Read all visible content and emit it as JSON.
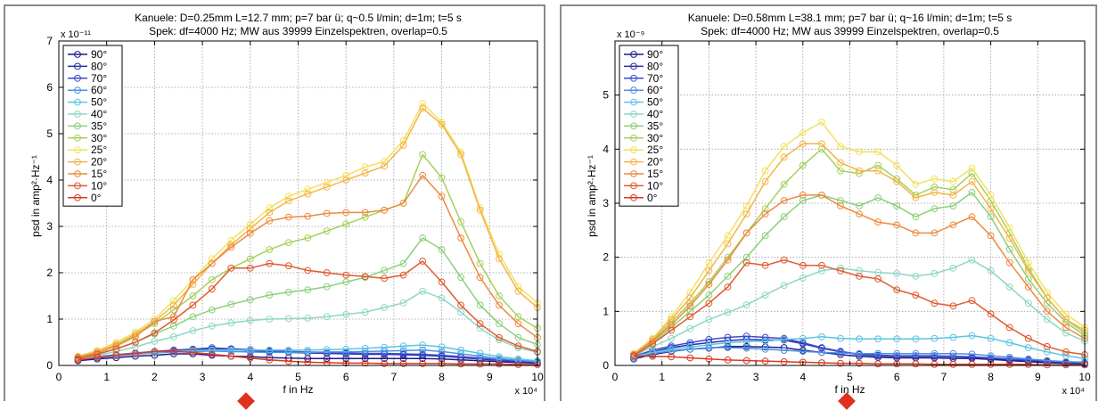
{
  "chart_data": [
    {
      "type": "line",
      "title": "Kanuele: D=0.25mm L=12.7 mm; p=7 bar ü; q~0.5 l/min; d=1m; t=5 s",
      "subtitle": "Spek: df=4000 Hz; MW aus 39999 Einzelspektren, overlap=0.5",
      "xlabel": "f in Hz",
      "ylabel": "psd in amp²·Hz⁻¹",
      "x_exponent_label": "x 10⁴",
      "y_exponent_label": "x 10⁻¹¹",
      "xlim": [
        0,
        10
      ],
      "ylim": [
        0,
        7
      ],
      "xticks": [
        "0",
        "1",
        "2",
        "3",
        "4",
        "5",
        "6",
        "7",
        "8",
        "9",
        "10"
      ],
      "yticks": [
        "0",
        "1",
        "2",
        "3",
        "4",
        "5",
        "6",
        "7"
      ],
      "grid": true,
      "legend_position": "top-left",
      "x": [
        0.4,
        0.8,
        1.2,
        1.6,
        2.0,
        2.4,
        2.8,
        3.2,
        3.6,
        4.0,
        4.4,
        4.8,
        5.2,
        5.6,
        6.0,
        6.4,
        6.8,
        7.2,
        7.6,
        8.0,
        8.4,
        8.8,
        9.2,
        9.6,
        10.0
      ],
      "series": [
        {
          "name": "90°",
          "color": "#1d1a8c",
          "values": [
            0.1,
            0.14,
            0.17,
            0.2,
            0.22,
            0.25,
            0.25,
            0.22,
            0.2,
            0.19,
            0.17,
            0.16,
            0.15,
            0.15,
            0.15,
            0.15,
            0.15,
            0.15,
            0.15,
            0.14,
            0.12,
            0.1,
            0.08,
            0.06,
            0.05
          ]
        },
        {
          "name": "80°",
          "color": "#2a2ea6",
          "values": [
            0.12,
            0.17,
            0.21,
            0.25,
            0.28,
            0.31,
            0.33,
            0.35,
            0.34,
            0.32,
            0.3,
            0.28,
            0.27,
            0.26,
            0.25,
            0.24,
            0.24,
            0.23,
            0.22,
            0.2,
            0.17,
            0.14,
            0.11,
            0.08,
            0.06
          ]
        },
        {
          "name": "70°",
          "color": "#3b4bd0",
          "values": [
            0.14,
            0.19,
            0.23,
            0.27,
            0.3,
            0.33,
            0.35,
            0.38,
            0.36,
            0.34,
            0.32,
            0.3,
            0.29,
            0.28,
            0.27,
            0.26,
            0.26,
            0.25,
            0.24,
            0.22,
            0.19,
            0.16,
            0.12,
            0.09,
            0.07
          ]
        },
        {
          "name": "60°",
          "color": "#4f8fe0",
          "values": [
            0.13,
            0.17,
            0.21,
            0.24,
            0.27,
            0.29,
            0.3,
            0.31,
            0.3,
            0.29,
            0.28,
            0.28,
            0.28,
            0.29,
            0.29,
            0.3,
            0.31,
            0.32,
            0.33,
            0.3,
            0.25,
            0.2,
            0.15,
            0.11,
            0.08
          ]
        },
        {
          "name": "50°",
          "color": "#5cc4e4",
          "values": [
            0.14,
            0.18,
            0.22,
            0.25,
            0.28,
            0.3,
            0.32,
            0.33,
            0.33,
            0.33,
            0.33,
            0.33,
            0.33,
            0.34,
            0.35,
            0.37,
            0.39,
            0.42,
            0.44,
            0.4,
            0.33,
            0.26,
            0.19,
            0.14,
            0.1
          ]
        },
        {
          "name": "40°",
          "color": "#8fd6c6",
          "values": [
            0.15,
            0.22,
            0.3,
            0.4,
            0.52,
            0.62,
            0.75,
            0.85,
            0.92,
            0.97,
            1.0,
            1.01,
            1.02,
            1.05,
            1.1,
            1.15,
            1.25,
            1.35,
            1.6,
            1.45,
            1.15,
            0.8,
            0.55,
            0.38,
            0.28
          ]
        },
        {
          "name": "35°",
          "color": "#8ccf7a",
          "values": [
            0.16,
            0.25,
            0.35,
            0.5,
            0.68,
            0.85,
            1.05,
            1.2,
            1.32,
            1.42,
            1.52,
            1.58,
            1.63,
            1.7,
            1.8,
            1.9,
            2.05,
            2.2,
            2.75,
            2.5,
            1.9,
            1.3,
            0.9,
            0.6,
            0.45
          ]
        },
        {
          "name": "30°",
          "color": "#a6d05a",
          "values": [
            0.18,
            0.3,
            0.45,
            0.65,
            0.9,
            1.2,
            1.5,
            1.85,
            2.1,
            2.3,
            2.5,
            2.65,
            2.75,
            2.9,
            3.05,
            3.2,
            3.35,
            3.5,
            4.55,
            4.05,
            3.1,
            2.2,
            1.5,
            1.05,
            0.8
          ]
        },
        {
          "name": "25°",
          "color": "#f2e060",
          "values": [
            0.2,
            0.32,
            0.5,
            0.72,
            1.0,
            1.4,
            1.85,
            2.3,
            2.7,
            3.05,
            3.4,
            3.65,
            3.8,
            3.95,
            4.1,
            4.28,
            4.4,
            4.85,
            5.65,
            5.25,
            4.6,
            3.4,
            2.4,
            1.7,
            1.35
          ]
        },
        {
          "name": "20°",
          "color": "#f3b448",
          "values": [
            0.19,
            0.3,
            0.46,
            0.68,
            0.95,
            1.3,
            1.75,
            2.2,
            2.6,
            2.95,
            3.3,
            3.55,
            3.7,
            3.85,
            4.0,
            4.15,
            4.3,
            4.75,
            5.55,
            5.2,
            4.55,
            3.35,
            2.3,
            1.6,
            1.25
          ]
        },
        {
          "name": "15°",
          "color": "#ee8a3e",
          "values": [
            0.17,
            0.27,
            0.42,
            0.62,
            0.95,
            1.05,
            1.85,
            2.2,
            2.55,
            2.85,
            3.12,
            3.2,
            3.22,
            3.28,
            3.3,
            3.3,
            3.35,
            3.5,
            4.1,
            3.65,
            2.75,
            1.9,
            1.3,
            0.9,
            0.6
          ]
        },
        {
          "name": "10°",
          "color": "#e05a2e",
          "values": [
            0.15,
            0.24,
            0.36,
            0.5,
            0.7,
            0.98,
            1.3,
            1.65,
            2.1,
            2.1,
            2.2,
            2.15,
            2.05,
            2.0,
            1.95,
            1.92,
            1.88,
            1.95,
            2.25,
            1.8,
            1.3,
            0.9,
            0.6,
            0.42,
            0.3
          ]
        },
        {
          "name": "0°",
          "color": "#d83a20",
          "values": [
            0.12,
            0.17,
            0.22,
            0.26,
            0.3,
            0.3,
            0.28,
            0.24,
            0.2,
            0.16,
            0.12,
            0.09,
            0.07,
            0.06,
            0.05,
            0.05,
            0.04,
            0.04,
            0.04,
            0.04,
            0.03,
            0.03,
            0.03,
            0.02,
            0.02
          ]
        }
      ]
    },
    {
      "type": "line",
      "title": "Kanuele: D=0.58mm L=38.1 mm; p=7 bar ü; q~16 l/min; d=1m; t=5 s",
      "subtitle": "Spek: df=4000 Hz; MW aus 39999 Einzelspektren, overlap=0.5",
      "xlabel": "f in Hz",
      "ylabel": "psd in amp²·Hz⁻¹",
      "x_exponent_label": "x 10⁴",
      "y_exponent_label": "x 10⁻⁹",
      "xlim": [
        0,
        10
      ],
      "ylim": [
        0,
        6
      ],
      "xticks": [
        "0",
        "1",
        "2",
        "3",
        "4",
        "5",
        "6",
        "7",
        "8",
        "9",
        "10"
      ],
      "yticks": [
        "0",
        "1",
        "2",
        "3",
        "4",
        "5"
      ],
      "grid": true,
      "legend_position": "top-left",
      "x": [
        0.4,
        0.8,
        1.2,
        1.6,
        2.0,
        2.4,
        2.8,
        3.2,
        3.6,
        4.0,
        4.4,
        4.8,
        5.2,
        5.6,
        6.0,
        6.4,
        6.8,
        7.2,
        7.6,
        8.0,
        8.4,
        8.8,
        9.2,
        9.6,
        10.0
      ],
      "series": [
        {
          "name": "90°",
          "color": "#1d1a8c",
          "values": [
            0.12,
            0.2,
            0.26,
            0.3,
            0.32,
            0.35,
            0.35,
            0.34,
            0.33,
            0.28,
            0.24,
            0.2,
            0.17,
            0.15,
            0.14,
            0.14,
            0.14,
            0.13,
            0.13,
            0.11,
            0.09,
            0.07,
            0.05,
            0.04,
            0.03
          ]
        },
        {
          "name": "80°",
          "color": "#2a2ea6",
          "values": [
            0.15,
            0.25,
            0.33,
            0.38,
            0.42,
            0.46,
            0.48,
            0.47,
            0.47,
            0.4,
            0.32,
            0.25,
            0.2,
            0.18,
            0.17,
            0.17,
            0.17,
            0.16,
            0.15,
            0.13,
            0.11,
            0.09,
            0.07,
            0.05,
            0.04
          ]
        },
        {
          "name": "70°",
          "color": "#3b4bd0",
          "values": [
            0.17,
            0.28,
            0.36,
            0.42,
            0.48,
            0.52,
            0.54,
            0.52,
            0.5,
            0.42,
            0.33,
            0.26,
            0.21,
            0.19,
            0.18,
            0.18,
            0.18,
            0.17,
            0.16,
            0.14,
            0.12,
            0.1,
            0.08,
            0.06,
            0.05
          ]
        },
        {
          "name": "60°",
          "color": "#4f8fe0",
          "values": [
            0.15,
            0.22,
            0.27,
            0.3,
            0.33,
            0.33,
            0.32,
            0.3,
            0.28,
            0.26,
            0.24,
            0.23,
            0.22,
            0.22,
            0.22,
            0.22,
            0.22,
            0.22,
            0.21,
            0.18,
            0.15,
            0.12,
            0.09,
            0.07,
            0.06
          ]
        },
        {
          "name": "50°",
          "color": "#5cc4e4",
          "values": [
            0.17,
            0.24,
            0.3,
            0.34,
            0.38,
            0.42,
            0.44,
            0.45,
            0.48,
            0.5,
            0.53,
            0.5,
            0.49,
            0.49,
            0.49,
            0.49,
            0.5,
            0.52,
            0.55,
            0.5,
            0.42,
            0.33,
            0.25,
            0.18,
            0.13
          ]
        },
        {
          "name": "40°",
          "color": "#8fd6c6",
          "values": [
            0.18,
            0.35,
            0.5,
            0.68,
            0.85,
            0.98,
            1.12,
            1.3,
            1.48,
            1.62,
            1.75,
            1.8,
            1.75,
            1.72,
            1.7,
            1.65,
            1.7,
            1.8,
            1.95,
            1.75,
            1.45,
            1.15,
            0.85,
            0.6,
            0.45
          ]
        },
        {
          "name": "35°",
          "color": "#8ccf7a",
          "values": [
            0.2,
            0.42,
            0.7,
            1.0,
            1.3,
            1.65,
            2.0,
            2.4,
            2.75,
            3.05,
            3.15,
            3.05,
            2.95,
            3.1,
            2.95,
            2.75,
            2.9,
            2.95,
            3.2,
            2.75,
            2.15,
            1.6,
            1.15,
            0.8,
            0.55
          ]
        },
        {
          "name": "30°",
          "color": "#a6d05a",
          "values": [
            0.2,
            0.45,
            0.8,
            1.15,
            1.55,
            2.0,
            2.45,
            2.9,
            3.35,
            3.7,
            4.0,
            3.6,
            3.55,
            3.7,
            3.45,
            3.15,
            3.3,
            3.25,
            3.55,
            3.05,
            2.45,
            1.8,
            1.25,
            0.85,
            0.6
          ]
        },
        {
          "name": "25°",
          "color": "#f2e060",
          "values": [
            0.22,
            0.5,
            0.9,
            1.35,
            1.9,
            2.4,
            2.95,
            3.6,
            4.05,
            4.3,
            4.5,
            4.05,
            3.95,
            3.95,
            3.7,
            3.35,
            3.45,
            3.4,
            3.65,
            3.15,
            2.55,
            1.9,
            1.35,
            0.95,
            0.7
          ]
        },
        {
          "name": "20°",
          "color": "#f3b448",
          "values": [
            0.21,
            0.48,
            0.85,
            1.25,
            1.75,
            2.25,
            2.8,
            3.4,
            3.85,
            4.1,
            4.1,
            3.75,
            3.6,
            3.6,
            3.4,
            3.1,
            3.2,
            3.15,
            3.4,
            2.9,
            2.35,
            1.75,
            1.25,
            0.85,
            0.65
          ]
        },
        {
          "name": "15°",
          "color": "#ee8a3e",
          "values": [
            0.2,
            0.45,
            0.75,
            1.1,
            1.5,
            1.95,
            2.45,
            2.8,
            3.05,
            3.15,
            3.15,
            2.95,
            2.8,
            2.65,
            2.6,
            2.45,
            2.45,
            2.6,
            2.75,
            2.4,
            1.9,
            1.45,
            1.0,
            0.7,
            0.5
          ]
        },
        {
          "name": "10°",
          "color": "#e05a2e",
          "values": [
            0.18,
            0.4,
            0.65,
            0.9,
            1.15,
            1.45,
            1.9,
            1.85,
            1.95,
            1.85,
            1.85,
            1.75,
            1.65,
            1.6,
            1.4,
            1.3,
            1.15,
            1.1,
            1.2,
            0.95,
            0.7,
            0.5,
            0.35,
            0.25,
            0.2
          ]
        },
        {
          "name": "0°",
          "color": "#d83a20",
          "values": [
            0.18,
            0.17,
            0.16,
            0.14,
            0.12,
            0.1,
            0.09,
            0.08,
            0.07,
            0.06,
            0.05,
            0.04,
            0.04,
            0.03,
            0.03,
            0.03,
            0.02,
            0.02,
            0.02,
            0.02,
            0.02,
            0.02,
            0.01,
            0.01,
            0.01
          ]
        }
      ]
    }
  ]
}
